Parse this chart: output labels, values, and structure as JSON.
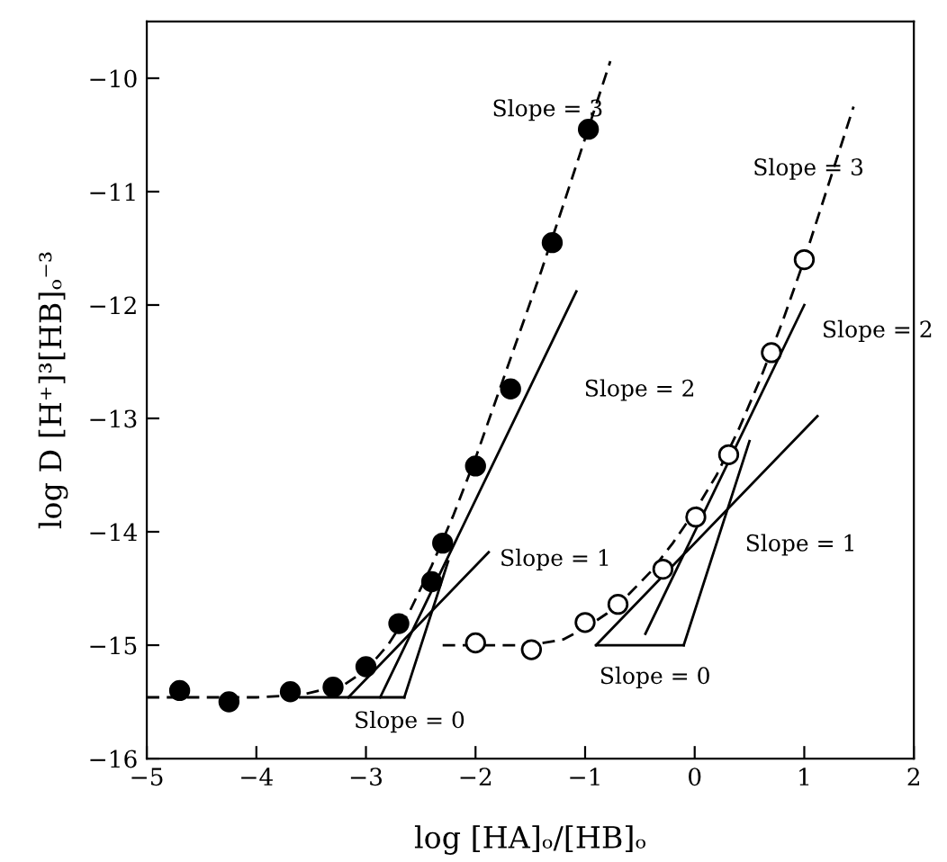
{
  "chart_data": {
    "type": "scatter",
    "xlabel": "log [HA]ₒ/[HB]ₒ",
    "ylabel": "log D [H⁺]³[HB]ₒ⁻³",
    "xlim": [
      -5,
      2
    ],
    "ylim": [
      -16,
      -9.5
    ],
    "xticks": [
      -5,
      -4,
      -3,
      -2,
      -1,
      0,
      1,
      2
    ],
    "yticks": [
      -16,
      -15,
      -14,
      -13,
      -12,
      -11,
      -10
    ],
    "grid": false,
    "legend": false,
    "series": [
      {
        "marker": "circle",
        "color": "#000000",
        "x": [
          -4.7,
          -4.25,
          -3.69,
          -3.3,
          -3.0,
          -2.7,
          -2.4,
          -2.3,
          -2.0,
          -1.68,
          -1.3,
          -0.97
        ],
        "values": [
          -15.4,
          -15.5,
          -15.41,
          -15.37,
          -15.19,
          -14.81,
          -14.44,
          -14.1,
          -13.42,
          -12.74,
          -11.45,
          -10.45
        ]
      },
      {
        "marker": "circle",
        "color": "#ffffff",
        "x": [
          -2.0,
          -1.49,
          -1.0,
          -0.7,
          -0.29,
          0.01,
          0.31,
          0.7,
          1.0
        ],
        "values": [
          -14.98,
          -15.04,
          -14.8,
          -14.64,
          -14.33,
          -13.87,
          -13.32,
          -12.42,
          -11.6
        ]
      },
      {
        "type": "line",
        "line_style": "dashed",
        "color": "#000000",
        "x": [
          -5,
          -4,
          -3.6,
          -3.2,
          -3.0,
          -2.8,
          -2.6,
          -2.4,
          -2.2,
          -2.0,
          -1.8,
          -1.6,
          -1.4,
          -1.2,
          -1.0,
          -0.77
        ],
        "values": [
          -15.46,
          -15.46,
          -15.44,
          -15.35,
          -15.22,
          -15.0,
          -14.7,
          -14.3,
          -13.85,
          -13.35,
          -12.8,
          -12.25,
          -11.7,
          -11.12,
          -10.53,
          -9.85
        ]
      },
      {
        "type": "line",
        "line_style": "dashed",
        "color": "#000000",
        "x": [
          -2.3,
          -1.5,
          -1.2,
          -1.0,
          -0.8,
          -0.6,
          -0.4,
          -0.2,
          0,
          0.2,
          0.4,
          0.6,
          0.8,
          1.0,
          1.2,
          1.45
        ],
        "values": [
          -15.0,
          -15.0,
          -14.95,
          -14.85,
          -14.72,
          -14.55,
          -14.35,
          -14.1,
          -13.82,
          -13.5,
          -13.1,
          -12.65,
          -12.15,
          -11.6,
          -11.0,
          -10.25
        ]
      },
      {
        "type": "line",
        "line_style": "solid",
        "color": "#000000",
        "x": [
          -3.6,
          -2.65
        ],
        "values": [
          -15.46,
          -15.46
        ]
      },
      {
        "type": "line",
        "line_style": "solid",
        "color": "#000000",
        "x": [
          -3.16,
          -1.88
        ],
        "values": [
          -15.46,
          -14.18
        ]
      },
      {
        "type": "line",
        "line_style": "solid",
        "color": "#000000",
        "x": [
          -2.87,
          -1.08
        ],
        "values": [
          -15.46,
          -11.88
        ]
      },
      {
        "type": "line",
        "line_style": "solid",
        "color": "#000000",
        "x": [
          -2.65,
          -2.25
        ],
        "values": [
          -15.46,
          -14.26
        ]
      },
      {
        "type": "line",
        "line_style": "solid",
        "color": "#000000",
        "x": [
          -0.9,
          -0.1
        ],
        "values": [
          -15.0,
          -15.0
        ]
      },
      {
        "type": "line",
        "line_style": "solid",
        "color": "#000000",
        "x": [
          -0.9,
          1.12
        ],
        "values": [
          -15.0,
          -12.98
        ]
      },
      {
        "type": "line",
        "line_style": "solid",
        "color": "#000000",
        "x": [
          -0.45,
          1.0
        ],
        "values": [
          -14.9,
          -12.0
        ]
      },
      {
        "type": "line",
        "line_style": "solid",
        "color": "#000000",
        "x": [
          -0.1,
          0.5
        ],
        "values": [
          -15.0,
          -13.2
        ]
      }
    ],
    "annotations": [
      "Slope = 3",
      "Slope = 2",
      "Slope = 1",
      "Slope = 0",
      "Slope = 3",
      "Slope = 2",
      "Slope = 1",
      "Slope = 0"
    ]
  }
}
